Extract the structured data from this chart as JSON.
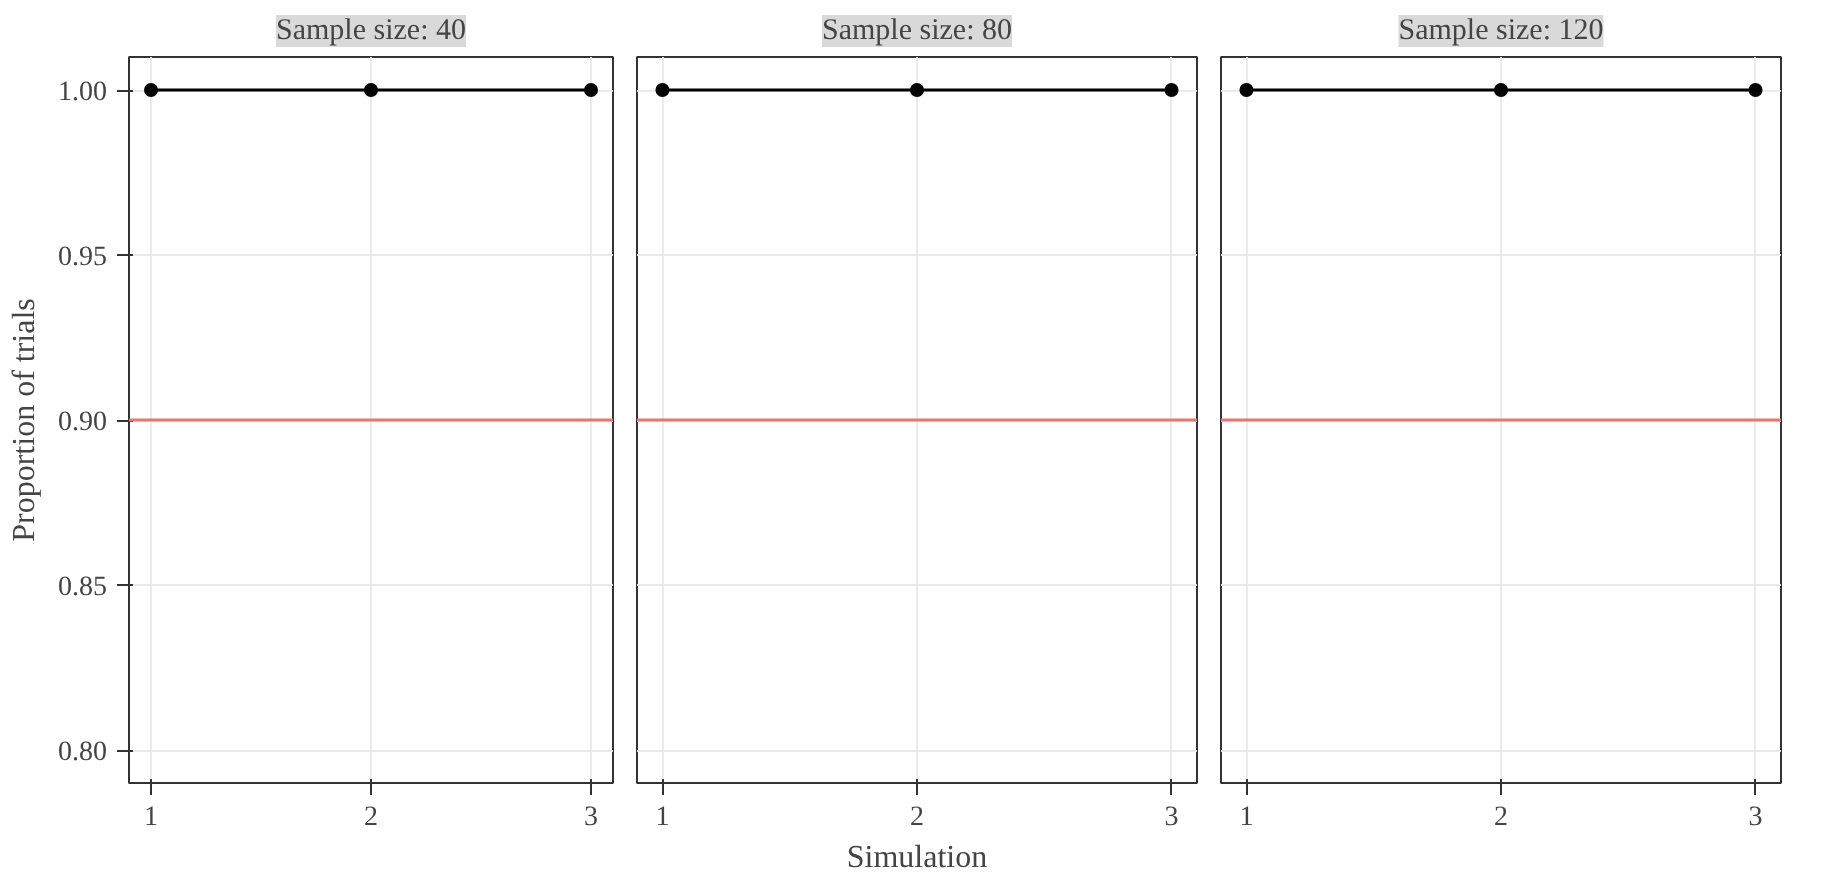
{
  "chart_data": [
    {
      "type": "line",
      "title": "Sample size: 40",
      "ylabel": "Proportion of trials",
      "x": [
        1,
        2,
        3
      ],
      "series": [
        {
          "color": "#000000",
          "values": [
            1.0,
            1.0,
            1.0
          ]
        }
      ],
      "xlim": [
        0.9,
        3.1
      ],
      "xticks": [
        1,
        2,
        3
      ],
      "ylim": [
        0.79,
        1.01
      ],
      "yticks": [
        {
          "value": 0.8,
          "label": "0.80"
        },
        0.85,
        {
          "value": 0.9,
          "label": "0.90"
        },
        0.95,
        {
          "value": 1.0,
          "label": "1.00"
        }
      ],
      "ref_lines": [
        {
          "axis": "y",
          "value": 0.9,
          "color": "#e07b72"
        }
      ],
      "grid": true,
      "marker": "circle"
    },
    {
      "type": "line",
      "title": "Sample size: 80",
      "xlabel": "Simulation",
      "x": [
        1,
        2,
        3
      ],
      "series": [
        {
          "color": "#000000",
          "values": [
            1.0,
            1.0,
            1.0
          ]
        }
      ],
      "xlim": [
        0.9,
        3.1
      ],
      "xticks": [
        1,
        2,
        3
      ],
      "ylim": [
        0.79,
        1.01
      ],
      "yticks": [
        0.8,
        0.85,
        0.9,
        0.95,
        1.0
      ],
      "ref_lines": [
        {
          "axis": "y",
          "value": 0.9,
          "color": "#e07b72"
        }
      ],
      "grid": true,
      "marker": "circle",
      "tick_labels": "x"
    },
    {
      "type": "line",
      "title": "Sample size: 120",
      "x": [
        1,
        2,
        3
      ],
      "series": [
        {
          "color": "#000000",
          "values": [
            1.0,
            1.0,
            1.0
          ]
        }
      ],
      "xlim": [
        0.9,
        3.1
      ],
      "xticks": [
        1,
        2,
        3
      ],
      "ylim": [
        0.79,
        1.01
      ],
      "yticks": [
        0.8,
        0.85,
        0.9,
        0.95,
        1.0
      ],
      "ref_lines": [
        {
          "axis": "y",
          "value": 0.9,
          "color": "#e07b72"
        }
      ],
      "grid": true,
      "marker": "circle",
      "tick_labels": "x"
    }
  ]
}
